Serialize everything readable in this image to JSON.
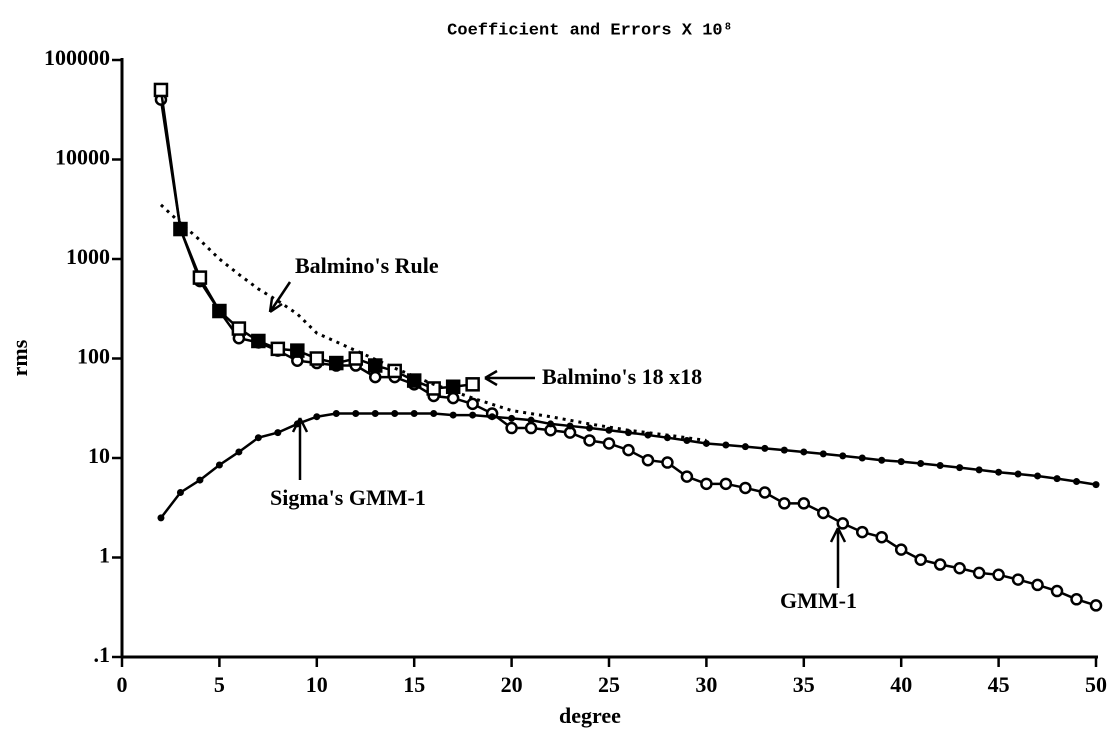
{
  "chart_data": {
    "type": "line",
    "title": "Coefficient and Errors X 10⁸",
    "x_label": "degree",
    "y_label": "rms",
    "log_y": true,
    "xlim": [
      0,
      50
    ],
    "xticks": [
      0,
      5,
      10,
      15,
      20,
      25,
      30,
      35,
      40,
      45,
      50
    ],
    "ylim": [
      0.1,
      100000
    ],
    "yticks": [
      {
        "value": 0.1,
        "label": ".1"
      },
      1,
      10,
      100,
      1000,
      10000,
      100000
    ],
    "series": [
      {
        "name": "GMM-1",
        "color": "#000000",
        "marker": "circle",
        "x": [
          2,
          3,
          4,
          5,
          6,
          7,
          8,
          9,
          10,
          11,
          12,
          13,
          14,
          15,
          16,
          17,
          18,
          19,
          20,
          21,
          22,
          23,
          24,
          25,
          26,
          27,
          28,
          29,
          30,
          31,
          32,
          33,
          34,
          35,
          36,
          37,
          38,
          39,
          40,
          41,
          42,
          43,
          44,
          45,
          46,
          47,
          48,
          49,
          50
        ],
        "values": [
          40000,
          2000,
          600,
          300,
          160,
          145,
          120,
          95,
          90,
          85,
          85,
          65,
          65,
          55,
          42,
          40,
          35,
          28,
          20,
          20,
          19,
          18,
          15,
          14,
          12,
          9.5,
          9,
          6.5,
          5.5,
          5.5,
          5,
          4.5,
          3.5,
          3.5,
          2.8,
          2.2,
          1.8,
          1.6,
          1.2,
          0.95,
          0.85,
          0.78,
          0.7,
          0.67,
          0.6,
          0.53,
          0.46,
          0.38,
          0.33
        ]
      },
      {
        "name": "Balmino's 18 x18",
        "color": "#000000",
        "marker": "square",
        "x": [
          2,
          3,
          4,
          5,
          6,
          7,
          8,
          9,
          10,
          11,
          12,
          13,
          14,
          15,
          16,
          17,
          18
        ],
        "values": [
          50000,
          2000,
          650,
          300,
          200,
          150,
          125,
          120,
          100,
          90,
          100,
          85,
          75,
          60,
          50,
          52,
          55
        ]
      },
      {
        "name": "Sigma's GMM-1",
        "color": "#000000",
        "marker": "dot",
        "x": [
          2,
          3,
          4,
          5,
          6,
          7,
          8,
          9,
          10,
          11,
          12,
          13,
          14,
          15,
          16,
          17,
          18,
          19,
          20,
          21,
          22,
          23,
          24,
          25,
          26,
          27,
          28,
          29,
          30,
          31,
          32,
          33,
          34,
          35,
          36,
          37,
          38,
          39,
          40,
          41,
          42,
          43,
          44,
          45,
          46,
          47,
          48,
          49,
          50
        ],
        "values": [
          2.5,
          4.5,
          6,
          8.5,
          11.5,
          16,
          18,
          22,
          26,
          28,
          28,
          28,
          28,
          28,
          28,
          27,
          27,
          26,
          25,
          24,
          22,
          21,
          20,
          19,
          18,
          17,
          16,
          15,
          14,
          13.5,
          13,
          12.5,
          12,
          11.5,
          11,
          10.5,
          10,
          9.5,
          9.2,
          8.8,
          8.4,
          8,
          7.6,
          7.2,
          6.9,
          6.6,
          6.2,
          5.8,
          5.4
        ]
      },
      {
        "name": "Balmino's Rule",
        "color": "#000000",
        "marker": "none",
        "dashed": true,
        "x": [
          2,
          3,
          4,
          5,
          6,
          7,
          8,
          9,
          10,
          12,
          14,
          16,
          18,
          20,
          22,
          24,
          26,
          28,
          30
        ],
        "values": [
          3500,
          2300,
          1550,
          1000,
          700,
          500,
          380,
          280,
          180,
          120,
          80,
          55,
          40,
          30,
          26,
          22,
          19,
          17,
          15
        ]
      }
    ]
  }
}
